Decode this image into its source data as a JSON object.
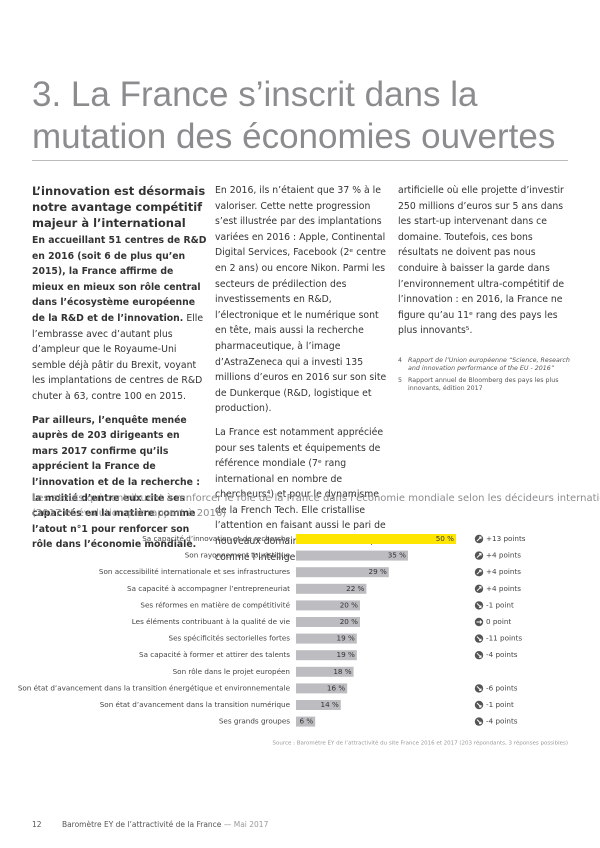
{
  "header": {
    "title": "3. La France s’inscrit dans la mutation des économies ouvertes"
  },
  "intro": {
    "heading": "L’innovation est désormais notre avantage compétitif majeur à l’international",
    "p1_bold": "En accueillant 51 centres de R&D en 2016 (soit 6 de plus qu’en 2015), la France affirme de mieux en mieux son rôle central dans l’écosystème européenne de la R&D et de l’innovation.",
    "p1_text": "Elle l’embrasse avec d’autant plus d’ampleur que le Royaume-Uni semble déjà pâtir du Brexit, voyant les implantations de centres de R&D chuter à 63, contre 100 en 2015.",
    "p2": "Par ailleurs, l’enquête menée auprès de 203 dirigeants en mars 2017 confirme qu’ils apprécient la France de l’innovation et de la recherche : la moitié d’entre eux cite ses capacités en la matière comme l’atout n°1 pour renforcer son rôle dans l’économie mondiale."
  },
  "middle": {
    "p1": "En 2016, ils n’étaient que 37 % à le valoriser. Cette nette progression s’est illustrée par des implantations variées en 2016 : Apple, Continental Digital Services, Facebook (2ᵉ centre en 2 ans) ou encore Nikon. Parmi les secteurs de prédilection des investissements en R&D, l’électronique et le numérique sont en tête, mais aussi la recherche pharmaceutique, à l’image d’AstraZeneca qui a investi 135 millions d’euros en 2016 sur son site de Dunkerque (R&D, logistique et production).",
    "p2": "La France est notamment appréciée pour ses talents et équipements de référence mondiale (7ᵉ rang international en nombre de chercheurs⁴) et pour le dynamisme de la French Tech. Elle cristallise l’attention en faisant aussi le pari de nouveaux domaines d’excellence, comme l’intelligence"
  },
  "right": {
    "p1": "artificielle où elle projette d’investir 250 millions d’euros sur 5 ans dans les start-up intervenant dans ce domaine. Toutefois, ces bons résultats ne doivent pas nous conduire à baisser la garde dans l’environnement ultra-compétitif de l’innovation : en 2016, la France ne figure qu’au 11ᵉ rang des pays les plus innovants⁵.",
    "footnotes": [
      {
        "number": "4",
        "text": "Rapport de l’Union européenne “Science, Research and innovation performance of the EU - 2016”"
      },
      {
        "number": "5",
        "text": "Rapport annuel de Bloomberg des pays les plus innovants, édition 2017"
      }
    ]
  },
  "chart_data": {
    "type": "bar",
    "title": "Les atouts qui contribuent à renforcer le rôle de la France dans l’économie mondiale selon les décideurs internationaux",
    "subtitle": "(2017 et évolution par rapport à 2016)",
    "categories": [
      "Sa capacité d’innovation et de recherche",
      "Son rayonnement touristique",
      "Son accessibilité internationale et ses infrastructures",
      "Sa capacité à accompagner l’entrepreneuriat",
      "Ses réformes en matière de compétitivité",
      "Les éléments contribuant à la qualité de vie",
      "Ses spécificités sectorielles fortes",
      "Sa capacité à former et attirer des talents",
      "Son rôle dans le projet européen",
      "Son état d’avancement dans la transition énergétique et environnementale",
      "Son état d’avancement dans la transition numérique",
      "Ses grands groupes"
    ],
    "values": [
      50,
      35,
      29,
      22,
      20,
      20,
      19,
      19,
      18,
      16,
      14,
      6
    ],
    "value_labels": [
      "50 %",
      "35 %",
      "29 %",
      "22 %",
      "20 %",
      "20 %",
      "19 %",
      "19 %",
      "18 %",
      "16 %",
      "14 %",
      "6 %"
    ],
    "colors": [
      "#ffe600",
      "#bdbdc1",
      "#bdbdc1",
      "#bdbdc1",
      "#bdbdc1",
      "#bdbdc1",
      "#bdbdc1",
      "#bdbdc1",
      "#bdbdc1",
      "#bdbdc1",
      "#bdbdc1",
      "#bdbdc1"
    ],
    "changes": [
      13,
      4,
      4,
      4,
      -1,
      0,
      -11,
      -4,
      null,
      -6,
      -1,
      -4
    ],
    "change_labels": [
      "+13 points",
      "+4 points",
      "+4 points",
      "+4 points",
      "-1 point",
      "0 point",
      "-11 points",
      "-4 points",
      null,
      "-6 points",
      "-1 point",
      "-4 points"
    ],
    "source": "Source : Baromètre EY de l’attractivité du site France 2016 et 2017 (203 répondants, 3 réponses possibles)"
  },
  "footer": {
    "page": "12",
    "text": "Baromètre EY de l’attractivité de la France",
    "date": "Mai 2017"
  }
}
